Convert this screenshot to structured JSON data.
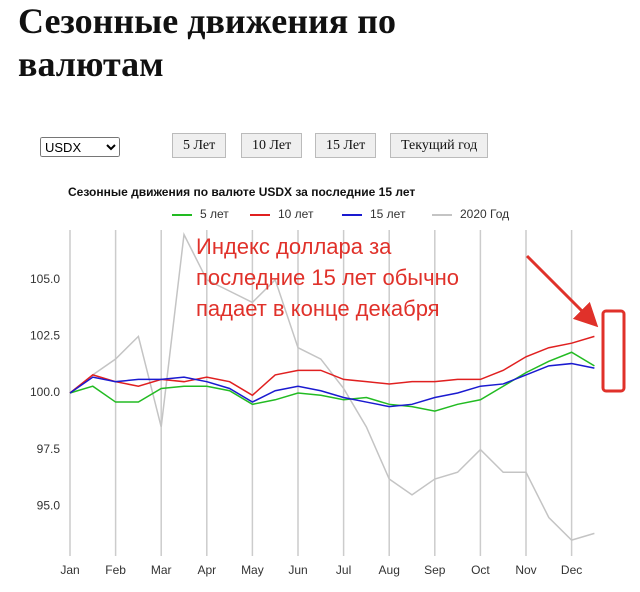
{
  "header": {
    "title": "Сезонные движения по валютам"
  },
  "controls": {
    "currency": "USDX",
    "buttons": [
      "5 Лет",
      "10 Лет",
      "15 Лет",
      "Текущий год"
    ]
  },
  "chart_data": {
    "type": "line",
    "title": "Сезонные движения по валюте USDX за последние 15 лет",
    "annotation": [
      "Индекс доллара за",
      "последние 15 лет обычно",
      "падает в конце декабря"
    ],
    "categories": [
      "Jan",
      null,
      "Feb",
      null,
      "Mar",
      null,
      "Apr",
      null,
      "May",
      null,
      "Jun",
      null,
      "Jul",
      null,
      "Aug",
      null,
      "Sep",
      null,
      "Oct",
      null,
      "Nov",
      null,
      "Dec",
      null
    ],
    "series": [
      {
        "name": "5 лет",
        "color": "#22bb22",
        "values": [
          100,
          100.3,
          99.6,
          99.6,
          100.2,
          100.3,
          100.3,
          100.1,
          99.5,
          99.7,
          100.0,
          99.9,
          99.7,
          99.8,
          99.5,
          99.4,
          99.2,
          99.5,
          99.7,
          100.3,
          100.9,
          101.4,
          101.8,
          101.2
        ]
      },
      {
        "name": "10 лет",
        "color": "#e02020",
        "values": [
          100,
          100.8,
          100.5,
          100.3,
          100.6,
          100.5,
          100.7,
          100.5,
          99.9,
          100.8,
          101.0,
          101.0,
          100.6,
          100.5,
          100.4,
          100.5,
          100.5,
          100.6,
          100.6,
          101.0,
          101.6,
          102.0,
          102.2,
          102.5
        ]
      },
      {
        "name": "15 лет",
        "color": "#1a1ad0",
        "values": [
          100,
          100.7,
          100.5,
          100.6,
          100.6,
          100.7,
          100.5,
          100.2,
          99.6,
          100.1,
          100.3,
          100.1,
          99.8,
          99.6,
          99.4,
          99.5,
          99.8,
          100.0,
          100.3,
          100.4,
          100.8,
          101.2,
          101.3,
          101.1
        ]
      },
      {
        "name": "2020 Год",
        "color": "#c4c4c4",
        "values": [
          100,
          100.8,
          101.5,
          102.5,
          98.5,
          107,
          105,
          104.5,
          104,
          105,
          102,
          101.5,
          100.2,
          98.5,
          96.2,
          95.5,
          96.2,
          96.5,
          97.5,
          96.5,
          96.5,
          94.5,
          93.5,
          93.8
        ]
      }
    ],
    "ylim": [
      92.8,
      107.2
    ],
    "yticks": [
      {
        "value": 95,
        "label": "95.0"
      },
      {
        "value": 97.5,
        "label": "97.5"
      },
      {
        "value": 100,
        "label": "100.0"
      },
      {
        "value": 102.5,
        "label": "102.5"
      },
      {
        "value": 105,
        "label": "105.0"
      }
    ],
    "grid": true
  }
}
